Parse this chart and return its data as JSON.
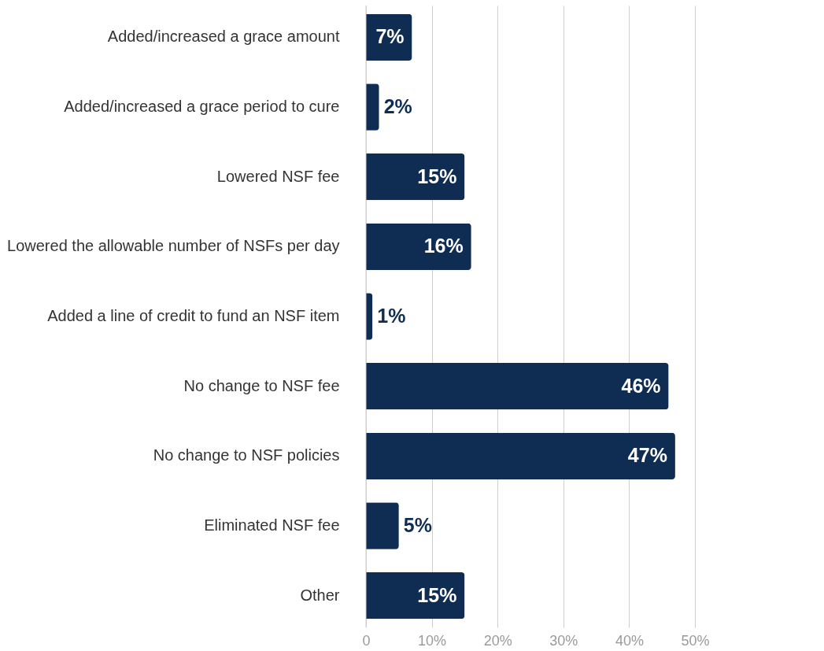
{
  "chart_data": {
    "type": "bar",
    "orientation": "horizontal",
    "categories": [
      "Added/increased a grace amount",
      "Added/increased a grace period to cure",
      "Lowered NSF fee",
      "Lowered the allowable number of NSFs per day",
      "Added a line of credit to fund an NSF item",
      "No change to NSF fee",
      "No change to NSF policies",
      "Eliminated NSF fee",
      "Other"
    ],
    "values": [
      7,
      2,
      15,
      16,
      1,
      46,
      47,
      5,
      15
    ],
    "value_labels": [
      "7%",
      "2%",
      "15%",
      "16%",
      "1%",
      "46%",
      "47%",
      "5%",
      "15%"
    ],
    "color": "#0f2d52",
    "xlim": [
      0,
      50
    ],
    "xticks": [
      {
        "value": 0,
        "label": "0"
      },
      {
        "value": 10,
        "label": "10%"
      },
      {
        "value": 20,
        "label": "20%"
      },
      {
        "value": 30,
        "label": "30%"
      },
      {
        "value": 40,
        "label": "40%"
      },
      {
        "value": 50,
        "label": "50%"
      }
    ],
    "grid": "x"
  }
}
